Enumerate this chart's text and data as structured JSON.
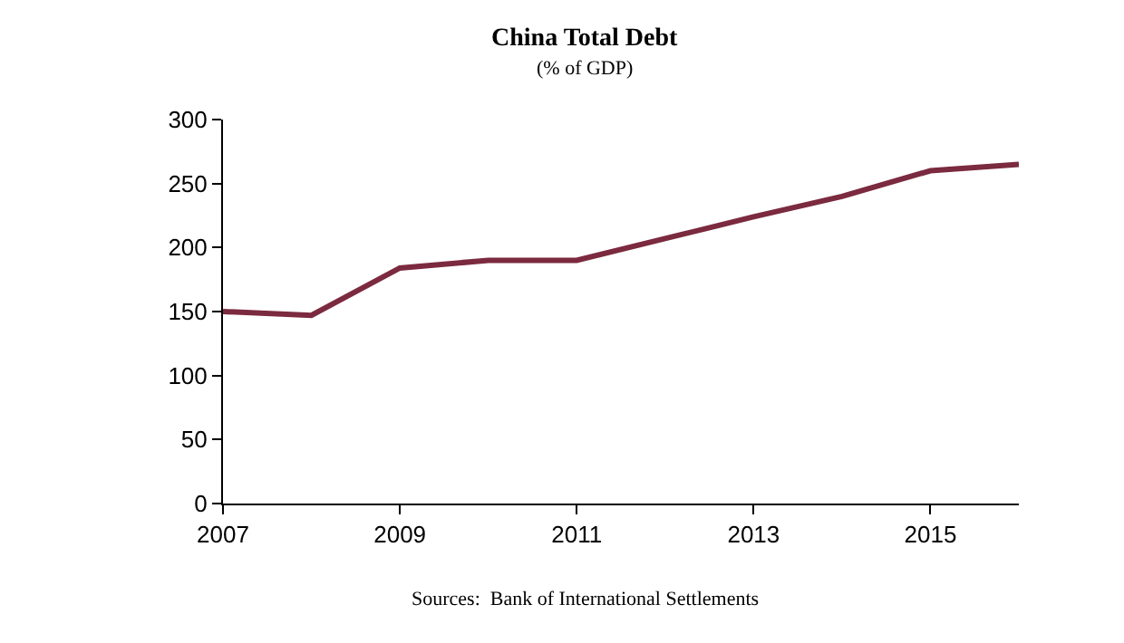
{
  "chart_data": {
    "type": "line",
    "title": "China Total Debt",
    "subtitle": "(% of GDP)",
    "x": [
      2007,
      2008,
      2009,
      2010,
      2011,
      2012,
      2013,
      2014,
      2015,
      2016
    ],
    "series": [
      {
        "color": "#7b2a3f",
        "values": [
          150,
          147,
          184,
          190,
          190,
          207,
          224,
          240,
          260,
          265
        ]
      }
    ],
    "xlim": [
      2007,
      2016
    ],
    "xticks": [
      2007,
      2009,
      2011,
      2013,
      2015
    ],
    "ylim": [
      0,
      300
    ],
    "yticks": [
      0,
      50,
      100,
      150,
      200,
      250,
      300
    ],
    "legend": false,
    "marker": "none",
    "line_style": "solid",
    "annotations": [
      "Sources:  Bank of International Settlements"
    ]
  }
}
